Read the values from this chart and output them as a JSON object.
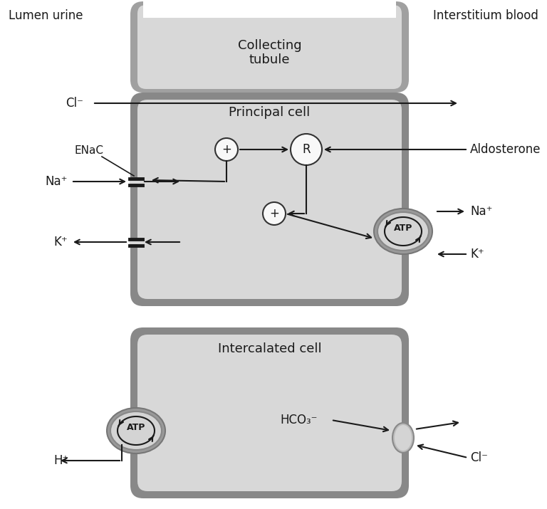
{
  "bg_color": "#ffffff",
  "text_color": "#1a1a1a",
  "arrow_color": "#1a1a1a",
  "outer_wall_color": "#888888",
  "inner_cell_color": "#d8d8d8",
  "cell_light_color": "#e8e8e8",
  "collecting_tubule_label": "Collecting\ntubule",
  "lumen_label": "Lumen urine",
  "interstitium_label": "Interstitium blood",
  "principal_cell_label": "Principal cell",
  "intercalated_cell_label": "Intercalated cell",
  "aldosterone_label": "Aldosterone",
  "enac_label": "ENaC",
  "atp_label": "ATP",
  "r_label": "R",
  "plus_label": "+",
  "na_plus": "Na⁺",
  "k_plus": "K⁺",
  "cl_minus": "Cl⁻",
  "hco3_minus": "HCO₃⁻",
  "h_plus": "H⁺",
  "figw": 7.68,
  "figh": 7.15,
  "dpi": 100
}
